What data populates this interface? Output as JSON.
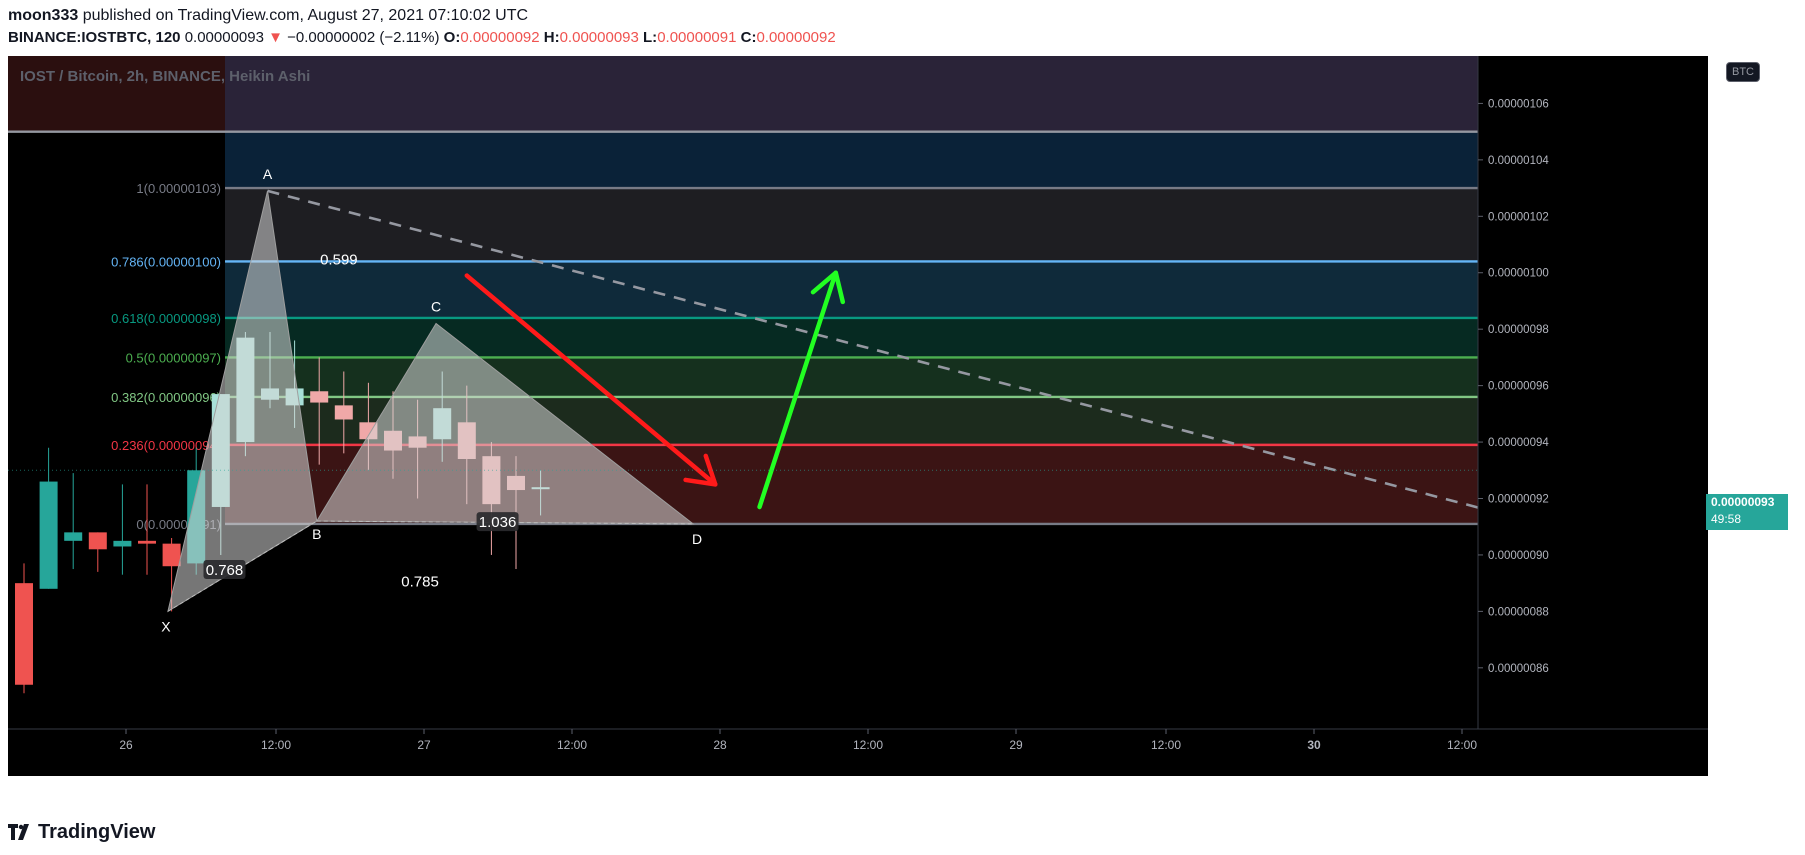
{
  "header": {
    "author": "moon333",
    "published_text": "published on TradingView.com, August 27, 2021 07:10:02 UTC",
    "symbol": "BINANCE:IOSTBTC, 120",
    "last": "0.00000093",
    "change": "−0.00000002 (−2.11%)",
    "o_label": "O:",
    "o_value": "0.00000092",
    "h_label": "H:",
    "h_value": "0.00000093",
    "l_label": "L:",
    "l_value": "0.00000091",
    "c_label": "C:",
    "c_value": "0.00000092"
  },
  "overlay_title": "IOST / Bitcoin, 2h, BINANCE, Heikin Ashi",
  "btc_badge": "BTC",
  "price_tag": {
    "price": "0.00000093",
    "countdown": "49:58"
  },
  "branding": "TradingView",
  "colors": {
    "up": "#26a69a",
    "down": "#ef5350",
    "pattern_fill": "#d7d7d7",
    "down_arrow": "#ff1a1a",
    "up_arrow": "#22ff22"
  },
  "chart_data": {
    "type": "candlestick",
    "title": "IOST / Bitcoin, 2h, BINANCE, Heikin Ashi",
    "y_unit": "BTC",
    "ylim": [
      8.45e-07,
      1.071e-06
    ],
    "y_ticks": [
      "0.00000106",
      "0.00000104",
      "0.00000102",
      "0.00000100",
      "0.00000098",
      "0.00000096",
      "0.00000094",
      "0.00000092",
      "0.00000090",
      "0.00000088",
      "0.00000086"
    ],
    "x_ticks": [
      "26",
      "12:00",
      "27",
      "12:00",
      "28",
      "12:00",
      "29",
      "12:00",
      "30",
      "12:00"
    ],
    "candles": [
      {
        "o": 8.9e-07,
        "c": 8.54e-07,
        "h": 8.97e-07,
        "l": 8.51e-07
      },
      {
        "o": 8.88e-07,
        "c": 9.26e-07,
        "h": 9.38e-07,
        "l": 8.88e-07
      },
      {
        "o": 9.05e-07,
        "c": 9.08e-07,
        "h": 9.29e-07,
        "l": 8.95e-07
      },
      {
        "o": 9.08e-07,
        "c": 9.02e-07,
        "h": 9.08e-07,
        "l": 8.94e-07
      },
      {
        "o": 9.03e-07,
        "c": 9.05e-07,
        "h": 9.25e-07,
        "l": 8.93e-07
      },
      {
        "o": 9.05e-07,
        "c": 9.04e-07,
        "h": 9.25e-07,
        "l": 8.93e-07
      },
      {
        "o": 9.04e-07,
        "c": 8.96e-07,
        "h": 9.06e-07,
        "l": 8.8e-07
      },
      {
        "o": 8.97e-07,
        "c": 9.3e-07,
        "h": 9.38e-07,
        "l": 8.93e-07
      },
      {
        "o": 9.17e-07,
        "c": 9.57e-07,
        "h": 9.57e-07,
        "l": 9e-07
      },
      {
        "o": 9.4e-07,
        "c": 9.77e-07,
        "h": 9.79e-07,
        "l": 9.35e-07
      },
      {
        "o": 9.55e-07,
        "c": 9.59e-07,
        "h": 9.79e-07,
        "l": 9.52e-07
      },
      {
        "o": 9.53e-07,
        "c": 9.59e-07,
        "h": 9.76e-07,
        "l": 9.45e-07
      },
      {
        "o": 9.58e-07,
        "c": 9.54e-07,
        "h": 9.7e-07,
        "l": 9.32e-07
      },
      {
        "o": 9.53e-07,
        "c": 9.48e-07,
        "h": 9.65e-07,
        "l": 9.36e-07
      },
      {
        "o": 9.47e-07,
        "c": 9.41e-07,
        "h": 9.61e-07,
        "l": 9.3e-07
      },
      {
        "o": 9.44e-07,
        "c": 9.37e-07,
        "h": 9.58e-07,
        "l": 9.27e-07
      },
      {
        "o": 9.42e-07,
        "c": 9.38e-07,
        "h": 9.55e-07,
        "l": 9.2e-07
      },
      {
        "o": 9.41e-07,
        "c": 9.52e-07,
        "h": 9.65e-07,
        "l": 9.33e-07
      },
      {
        "o": 9.47e-07,
        "c": 9.34e-07,
        "h": 9.6e-07,
        "l": 9.18e-07
      },
      {
        "o": 9.35e-07,
        "c": 9.18e-07,
        "h": 9.4e-07,
        "l": 9e-07
      },
      {
        "o": 9.28e-07,
        "c": 9.23e-07,
        "h": 9.35e-07,
        "l": 8.95e-07
      },
      {
        "o": 9.24e-07,
        "c": 9.24e-07,
        "h": 9.3e-07,
        "l": 9.14e-07
      }
    ],
    "fib_levels": [
      {
        "ratio": "0",
        "label": "0(0.00000091)",
        "value": 9.11e-07,
        "color": "#787b86"
      },
      {
        "ratio": "0.236",
        "label": "0.236(0.00000094)",
        "value": 9.39e-07,
        "color": "#f23645"
      },
      {
        "ratio": "0.382",
        "label": "0.382(0.00000096)",
        "value": 9.56e-07,
        "color": "#81c784"
      },
      {
        "ratio": "0.5",
        "label": "0.5(0.00000097)",
        "value": 9.7e-07,
        "color": "#4caf50"
      },
      {
        "ratio": "0.618",
        "label": "0.618(0.00000098)",
        "value": 9.84e-07,
        "color": "#089981"
      },
      {
        "ratio": "0.786",
        "label": "0.786(0.00000100)",
        "value": 1.004e-06,
        "color": "#64b5f6"
      },
      {
        "ratio": "1",
        "label": "1(0.00000103)",
        "value": 1.03e-06,
        "color": "#787b86"
      },
      {
        "ratio": "",
        "label": "",
        "value": 1.05e-06,
        "color": "#9598a1"
      }
    ],
    "harmonic_points": [
      {
        "name": "X",
        "x": 5.85,
        "y": 8.8e-07
      },
      {
        "name": "A",
        "x": 9.9,
        "y": 1.029e-06
      },
      {
        "name": "B",
        "x": 11.9,
        "y": 9.12e-07
      },
      {
        "name": "C",
        "x": 16.75,
        "y": 9.82e-07
      },
      {
        "name": "D",
        "x": 27.2,
        "y": 9.11e-07
      }
    ],
    "ratios": [
      {
        "label": "0.768",
        "x": 8.15,
        "y": 8.95e-07
      },
      {
        "label": "0.599",
        "x": 12.8,
        "y": 1.005e-06
      },
      {
        "label": "0.785",
        "x": 16.1,
        "y": 8.91e-07
      },
      {
        "label": "1.036",
        "x": 19.25,
        "y": 9.12e-07
      }
    ],
    "dashed_trend": [
      {
        "x": 9.9,
        "y": 1.029e-06
      },
      {
        "x": 59.9,
        "y": 9.15e-07
      }
    ],
    "arrows": [
      {
        "direction": "down",
        "from": {
          "x": 18.0,
          "y": 9.99e-07
        },
        "to": {
          "x": 28.1,
          "y": 9.25e-07
        }
      },
      {
        "direction": "up",
        "from": {
          "x": 29.9,
          "y": 9.17e-07
        },
        "to": {
          "x": 33.0,
          "y": 1e-06
        }
      }
    ]
  }
}
